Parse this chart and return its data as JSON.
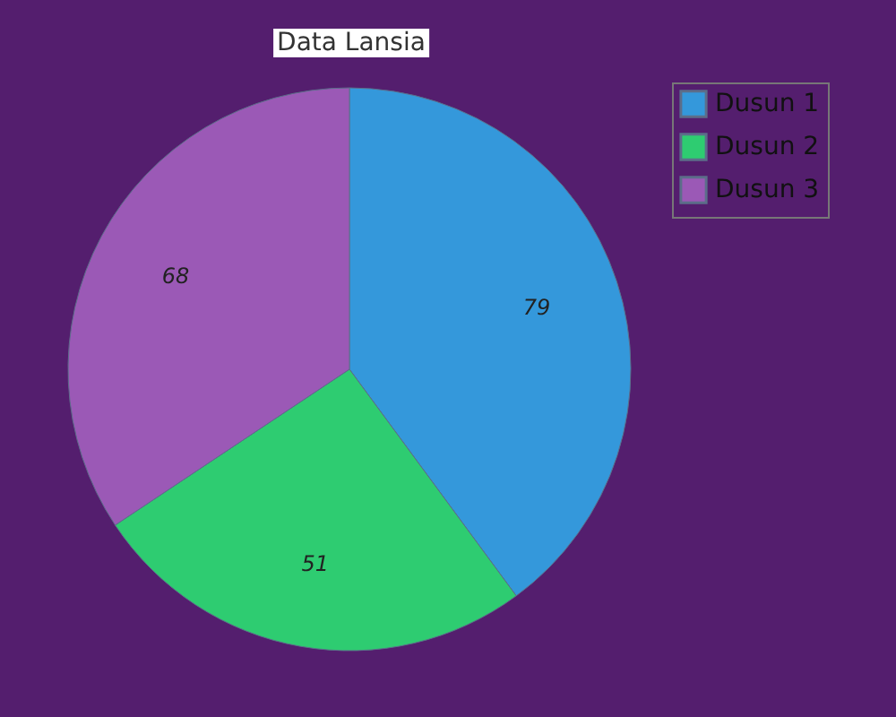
{
  "chart_data": {
    "type": "pie",
    "title": "Data Lansia",
    "categories": [
      "Dusun 1",
      "Dusun 2",
      "Dusun 3"
    ],
    "values": [
      79,
      51,
      68
    ],
    "colors": [
      "#3498db",
      "#2ecc71",
      "#9b59b6"
    ],
    "data_labels": true,
    "legend": "right"
  }
}
